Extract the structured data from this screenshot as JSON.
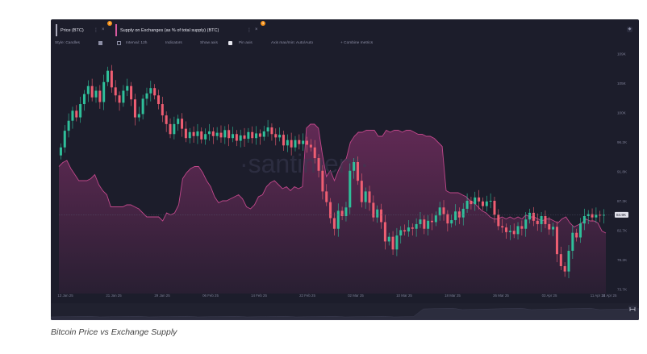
{
  "tabs": [
    {
      "label": "Price (BTC)",
      "color": "#a8a8b8",
      "badge": "2"
    },
    {
      "label": "Supply on Exchanges (as % of total supply) (BTC)",
      "color": "#d85aa0",
      "badge": "3"
    }
  ],
  "toolbar": {
    "style": "Style: Candles",
    "interval": "Interval: 12h",
    "indicators": "Indicators",
    "show_axis": "Show axis",
    "pin_axis": "Pin axis",
    "axis_minmax": "Axis max/min: Auto/Auto",
    "combine": "+ Combine metrics"
  },
  "watermark": "·santiment·",
  "caption": "Bitcoin Price vs Exchange Supply",
  "chart_data": {
    "type": "line",
    "title": "",
    "x_ticks": [
      "13 Jan 25",
      "21 Jan 25",
      "29 Jan 25",
      "06 Feb 25",
      "14 Feb 25",
      "22 Feb 25",
      "02 Mar 25",
      "10 Mar 25",
      "18 Mar 25",
      "26 Mar 25",
      "03 Apr 25",
      "11 Apr 25",
      "14 Apr 25"
    ],
    "y_ticks": [
      "109K",
      "105K",
      "100K",
      "96.2K",
      "91.8K",
      "87.3K",
      "82.7K",
      "78.2K",
      "73.7K"
    ],
    "ylim": [
      73700,
      109000
    ],
    "last_price_label": "84.9K",
    "series": [
      {
        "name": "Price (BTC)",
        "style": "candles",
        "up_color": "#2fbf9a",
        "down_color": "#ef5e72",
        "close": [
          95000,
          97500,
          99000,
          100500,
          99500,
          101500,
          103000,
          104200,
          102500,
          103500,
          101800,
          104800,
          106500,
          104000,
          102800,
          101700,
          103500,
          104200,
          102200,
          99500,
          100000,
          102300,
          103100,
          103900,
          102800,
          101500,
          99800,
          98500,
          97000,
          98500,
          99300,
          97800,
          96400,
          97300,
          96700,
          97400,
          96200,
          97000,
          97400,
          96700,
          97200,
          96500,
          97600,
          96400,
          97000,
          96000,
          96800,
          96300,
          97300,
          96400,
          97100,
          96600,
          97400,
          98000,
          97000,
          96500,
          96900,
          95300,
          96100,
          95000,
          96100,
          95500,
          96000,
          95400,
          95000,
          93400,
          91500,
          88400,
          86800,
          84400,
          82800,
          85500,
          84700,
          86000,
          91500,
          92800,
          90000,
          86800,
          88400,
          86700,
          84500,
          85700,
          83800,
          80900,
          81600,
          79700,
          81800,
          82600,
          82400,
          83000,
          82800,
          83500,
          84200,
          82800,
          84000,
          83800,
          84800,
          86000,
          85000,
          83600,
          84100,
          85400,
          84500,
          85800,
          87000,
          86500,
          87500,
          86900,
          86200,
          86900,
          87000,
          84900,
          83200,
          83000,
          82300,
          82500,
          82000,
          83200,
          82800,
          84200,
          85200,
          84000,
          83500,
          84700,
          83500,
          82700,
          83100,
          79000,
          77200,
          76400,
          79500,
          82200,
          81500,
          83600,
          84700,
          85000,
          84500,
          84900,
          84800,
          84900
        ]
      },
      {
        "name": "Supply on Exchanges (as % of total supply) (BTC)",
        "style": "area",
        "color": "#c0478a",
        "level": [
          0.51,
          0.53,
          0.54,
          0.5,
          0.47,
          0.44,
          0.44,
          0.44,
          0.45,
          0.47,
          0.42,
          0.39,
          0.37,
          0.31,
          0.31,
          0.31,
          0.31,
          0.32,
          0.32,
          0.31,
          0.3,
          0.28,
          0.26,
          0.26,
          0.26,
          0.26,
          0.24,
          0.28,
          0.27,
          0.28,
          0.32,
          0.45,
          0.48,
          0.5,
          0.51,
          0.51,
          0.48,
          0.44,
          0.41,
          0.36,
          0.33,
          0.34,
          0.34,
          0.35,
          0.36,
          0.37,
          0.35,
          0.31,
          0.3,
          0.32,
          0.36,
          0.37,
          0.41,
          0.43,
          0.44,
          0.42,
          0.4,
          0.41,
          0.39,
          0.41,
          0.4,
          0.41,
          0.7,
          0.72,
          0.72,
          0.7,
          0.57,
          0.46,
          0.49,
          0.44,
          0.49,
          0.53,
          0.55,
          0.63,
          0.66,
          0.68,
          0.68,
          0.69,
          0.69,
          0.69,
          0.66,
          0.66,
          0.69,
          0.68,
          0.69,
          0.69,
          0.68,
          0.69,
          0.69,
          0.68,
          0.67,
          0.67,
          0.66,
          0.66,
          0.65,
          0.63,
          0.61,
          0.39,
          0.38,
          0.38,
          0.38,
          0.37,
          0.36,
          0.34,
          0.33,
          0.31,
          0.29,
          0.28,
          0.26,
          0.25,
          0.25,
          0.26,
          0.25,
          0.26,
          0.25,
          0.26,
          0.25,
          0.27,
          0.26,
          0.26,
          0.25,
          0.24,
          0.25,
          0.25,
          0.24,
          0.23,
          0.25,
          0.26,
          0.23,
          0.21,
          0.22,
          0.23,
          0.25,
          0.24,
          0.24,
          0.23,
          0.19,
          0.18
        ]
      }
    ]
  }
}
